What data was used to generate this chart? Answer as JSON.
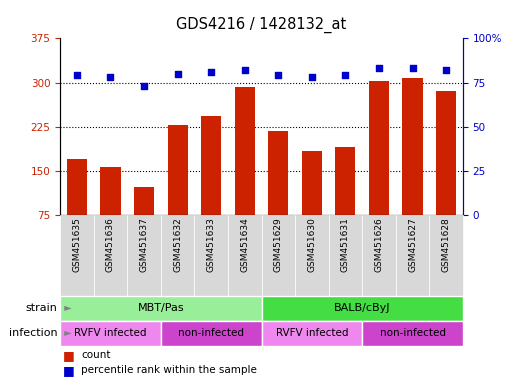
{
  "title": "GDS4216 / 1428132_at",
  "samples": [
    "GSM451635",
    "GSM451636",
    "GSM451637",
    "GSM451632",
    "GSM451633",
    "GSM451634",
    "GSM451629",
    "GSM451630",
    "GSM451631",
    "GSM451626",
    "GSM451627",
    "GSM451628"
  ],
  "bar_values": [
    170,
    157,
    122,
    228,
    243,
    293,
    218,
    183,
    190,
    302,
    308,
    285
  ],
  "percentile_values": [
    79,
    78,
    73,
    80,
    81,
    82,
    79,
    78,
    79,
    83,
    83,
    82
  ],
  "bar_color": "#cc2200",
  "dot_color": "#0000cc",
  "ylim_left": [
    75,
    375
  ],
  "ylim_right": [
    0,
    100
  ],
  "yticks_left": [
    75,
    150,
    225,
    300,
    375
  ],
  "yticks_right": [
    0,
    25,
    50,
    75,
    100
  ],
  "grid_values": [
    150,
    225,
    300
  ],
  "strain_labels": [
    {
      "text": "MBT/Pas",
      "start": 0,
      "end": 5,
      "color": "#99ee99"
    },
    {
      "text": "BALB/cByJ",
      "start": 6,
      "end": 11,
      "color": "#44dd44"
    }
  ],
  "infection_labels": [
    {
      "text": "RVFV infected",
      "start": 0,
      "end": 2,
      "color": "#ee88ee"
    },
    {
      "text": "non-infected",
      "start": 3,
      "end": 5,
      "color": "#cc44cc"
    },
    {
      "text": "RVFV infected",
      "start": 6,
      "end": 8,
      "color": "#ee88ee"
    },
    {
      "text": "non-infected",
      "start": 9,
      "end": 11,
      "color": "#cc44cc"
    }
  ],
  "bar_bottom": 75,
  "background_color": "#ffffff"
}
